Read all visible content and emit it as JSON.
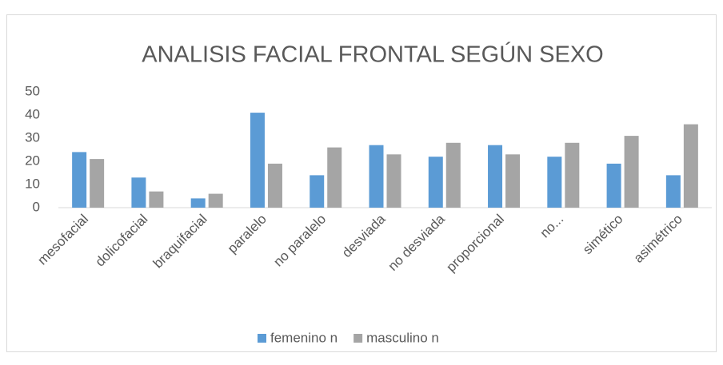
{
  "chart_data": {
    "type": "bar",
    "title": "ANALISIS FACIAL FRONTAL SEGÚN SEXO",
    "categories": [
      "mesofacial",
      "dolicofacial",
      "braquifacial",
      "paralelo",
      "no paralelo",
      "desviada",
      "no desviada",
      "proporcional",
      "no...",
      "simético",
      "asimétrico"
    ],
    "series": [
      {
        "name": "femenino n",
        "color": "#5b9bd5",
        "values": [
          24,
          13,
          4,
          41,
          14,
          27,
          22,
          27,
          22,
          19,
          14
        ]
      },
      {
        "name": "masculino n",
        "color": "#a5a5a5",
        "values": [
          21,
          7,
          6,
          19,
          26,
          23,
          28,
          23,
          28,
          31,
          36
        ]
      }
    ],
    "ylim": [
      0,
      50
    ],
    "yticks": [
      0,
      10,
      20,
      30,
      40,
      50
    ],
    "grid": false,
    "legend": "bottom"
  }
}
